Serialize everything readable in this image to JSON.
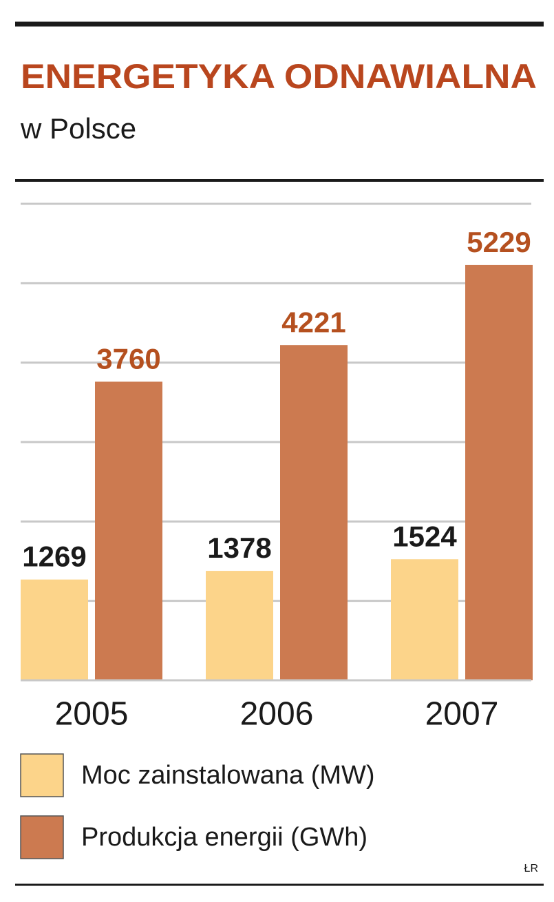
{
  "chart_data": {
    "type": "bar",
    "title": "ENERGETYKA ODNAWIALNA",
    "subtitle": "w Polsce",
    "categories": [
      "2005",
      "2006",
      "2007"
    ],
    "series": [
      {
        "name": "Moc zainstalowana (MW)",
        "color": "#fcd48a",
        "label_color": "#1a1a1a",
        "values": [
          1269,
          1378,
          1524
        ]
      },
      {
        "name": "Produkcja energii (GWh)",
        "color": "#cc7a50",
        "label_color": "#b5501f",
        "values": [
          3760,
          4221,
          5229
        ]
      }
    ],
    "ylim": [
      0,
      6000
    ],
    "yticks": [
      0,
      1000,
      2000,
      3000,
      4000,
      5000,
      6000
    ],
    "grid": true,
    "credit": "ŁR"
  }
}
